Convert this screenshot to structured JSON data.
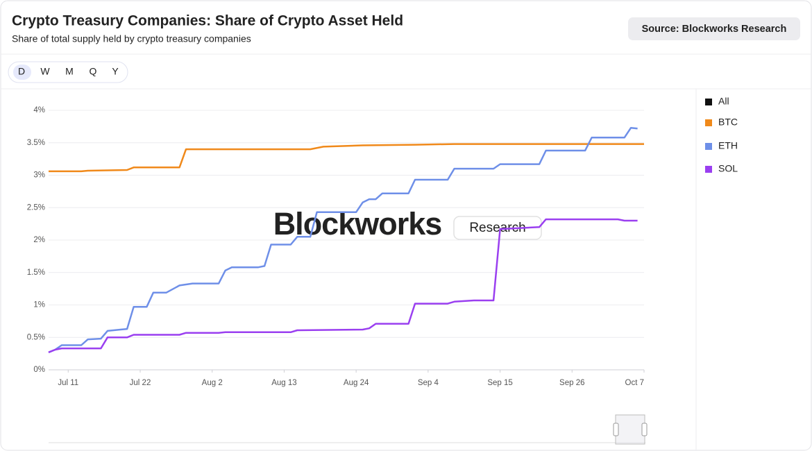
{
  "header": {
    "title": "Crypto Treasury Companies: Share of Crypto Asset Held",
    "subtitle": "Share of total supply held by crypto treasury companies",
    "source": "Source: Blockworks Research"
  },
  "periods": [
    "D",
    "W",
    "M",
    "Q",
    "Y"
  ],
  "chart_data": {
    "type": "line",
    "watermark": [
      "Blockworks",
      "Research"
    ],
    "legend_all": {
      "name": "All",
      "color": "#111111"
    },
    "xlim": [
      "Jul 8",
      "Oct 7"
    ],
    "xticks": [
      "Jul 11",
      "Jul 22",
      "Aug 2",
      "Aug 13",
      "Aug 24",
      "Sep 4",
      "Sep 15",
      "Sep 26",
      "Oct 7"
    ],
    "ylim": [
      0,
      4
    ],
    "yticks": [
      {
        "value": 0,
        "label": "0%"
      },
      {
        "value": 0.5,
        "label": "0.5%"
      },
      {
        "value": 1,
        "label": "1%"
      },
      {
        "value": 1.5,
        "label": "1.5%"
      },
      {
        "value": 2,
        "label": "2%"
      },
      {
        "value": 2.5,
        "label": "2.5%"
      },
      {
        "value": 3,
        "label": "3%"
      },
      {
        "value": 3.5,
        "label": "3.5%"
      },
      {
        "value": 4,
        "label": "4%"
      }
    ],
    "grid": true,
    "series": [
      {
        "name": "BTC",
        "color": "#f0891a",
        "x": [
          "Jul 8",
          "Jul 13",
          "Jul 14",
          "Jul 20",
          "Jul 21",
          "Jul 28",
          "Jul 29",
          "Aug 17",
          "Aug 19",
          "Aug 25",
          "Sep 2",
          "Sep 8",
          "Oct 7"
        ],
        "values": [
          3.06,
          3.06,
          3.07,
          3.08,
          3.12,
          3.12,
          3.4,
          3.4,
          3.44,
          3.46,
          3.47,
          3.48,
          3.48
        ]
      },
      {
        "name": "ETH",
        "color": "#6e8fe8",
        "x": [
          "Jul 8",
          "Jul 9",
          "Jul 10",
          "Jul 13",
          "Jul 14",
          "Jul 16",
          "Jul 17",
          "Jul 19",
          "Jul 20",
          "Jul 21",
          "Jul 23",
          "Jul 24",
          "Jul 26",
          "Jul 28",
          "Jul 30",
          "Aug 3",
          "Aug 4",
          "Aug 5",
          "Aug 9",
          "Aug 10",
          "Aug 11",
          "Aug 14",
          "Aug 15",
          "Aug 17",
          "Aug 18",
          "Aug 24",
          "Aug 25",
          "Aug 26",
          "Aug 27",
          "Aug 28",
          "Sep 1",
          "Sep 2",
          "Sep 7",
          "Sep 8",
          "Sep 14",
          "Sep 15",
          "Sep 21",
          "Sep 22",
          "Sep 28",
          "Sep 29",
          "Oct 4",
          "Oct 5",
          "Oct 6"
        ],
        "values": [
          0.27,
          0.31,
          0.38,
          0.38,
          0.47,
          0.48,
          0.6,
          0.62,
          0.63,
          0.97,
          0.97,
          1.19,
          1.19,
          1.3,
          1.33,
          1.33,
          1.53,
          1.58,
          1.58,
          1.6,
          1.93,
          1.93,
          2.05,
          2.05,
          2.43,
          2.43,
          2.58,
          2.63,
          2.63,
          2.72,
          2.72,
          2.93,
          2.93,
          3.1,
          3.1,
          3.17,
          3.17,
          3.38,
          3.38,
          3.58,
          3.58,
          3.73,
          3.72
        ]
      },
      {
        "name": "SOL",
        "color": "#9a3ff0",
        "x": [
          "Jul 8",
          "Jul 9",
          "Jul 10",
          "Jul 16",
          "Jul 17",
          "Jul 20",
          "Jul 21",
          "Jul 28",
          "Jul 29",
          "Aug 3",
          "Aug 4",
          "Aug 14",
          "Aug 15",
          "Aug 25",
          "Aug 26",
          "Aug 27",
          "Sep 1",
          "Sep 2",
          "Sep 7",
          "Sep 8",
          "Sep 11",
          "Sep 14",
          "Sep 15",
          "Sep 21",
          "Sep 22",
          "Oct 3",
          "Oct 4",
          "Oct 6"
        ],
        "values": [
          0.27,
          0.31,
          0.33,
          0.33,
          0.5,
          0.5,
          0.54,
          0.54,
          0.57,
          0.57,
          0.58,
          0.58,
          0.61,
          0.62,
          0.64,
          0.71,
          0.71,
          1.02,
          1.02,
          1.05,
          1.07,
          1.07,
          2.17,
          2.2,
          2.32,
          2.32,
          2.3,
          2.3
        ]
      }
    ]
  }
}
